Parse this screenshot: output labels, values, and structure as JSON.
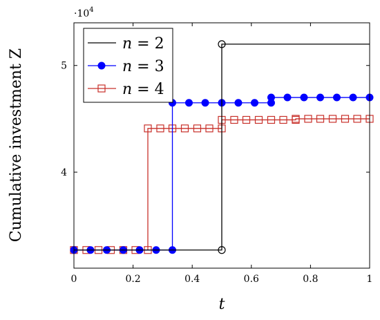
{
  "chart_data": {
    "type": "line",
    "title": "",
    "xlabel": "t",
    "ylabel": "Cumulative investment Z",
    "xlim": [
      0,
      1
    ],
    "ylim": [
      31000,
      54000
    ],
    "y_scale_label": "·10",
    "y_scale_exponent": "4",
    "x_ticks": [
      0,
      0.2,
      0.4,
      0.6,
      0.8,
      1
    ],
    "x_tick_labels": [
      "0",
      "0.2",
      "0.4",
      "0.6",
      "0.8",
      "1"
    ],
    "y_ticks": [
      40000,
      50000
    ],
    "y_tick_labels": [
      "4",
      "5"
    ],
    "legend_position": "top-left",
    "series": [
      {
        "name": "n = 2",
        "legend": {
          "base": "n",
          "eq": " = ",
          "num": "2"
        },
        "color": "#000000",
        "marker": "open-circle",
        "x": [
          0,
          0.5,
          0.5,
          1
        ],
        "y": [
          32700,
          32700,
          52000,
          52000
        ],
        "marker_x": [
          0.5,
          0.5
        ],
        "marker_y": [
          32700,
          52000
        ]
      },
      {
        "name": "n = 3",
        "legend": {
          "base": "n",
          "eq": " = ",
          "num": "3"
        },
        "color": "#0000ff",
        "marker": "filled-circle",
        "x": [
          0,
          0.333,
          0.333,
          0.667,
          0.667,
          1
        ],
        "y": [
          32700,
          32700,
          46500,
          46500,
          47000,
          47000
        ],
        "marker_x": [
          0,
          0.056,
          0.111,
          0.167,
          0.222,
          0.278,
          0.333,
          0.333,
          0.389,
          0.444,
          0.5,
          0.556,
          0.611,
          0.667,
          0.667,
          0.722,
          0.778,
          0.833,
          0.889,
          0.944,
          1
        ],
        "marker_y": [
          32700,
          32700,
          32700,
          32700,
          32700,
          32700,
          32700,
          46500,
          46500,
          46500,
          46500,
          46500,
          46500,
          46500,
          47000,
          47000,
          47000,
          47000,
          47000,
          47000,
          47000
        ]
      },
      {
        "name": "n = 4",
        "legend": {
          "base": "n",
          "eq": " = ",
          "num": "4"
        },
        "color": "#c8302a",
        "marker": "open-square",
        "x": [
          0,
          0.25,
          0.25,
          0.5,
          0.5,
          0.75,
          0.75,
          1
        ],
        "y": [
          32700,
          32700,
          44100,
          44100,
          44900,
          44900,
          45000,
          45000
        ],
        "marker_x": [
          0,
          0.042,
          0.083,
          0.125,
          0.167,
          0.208,
          0.25,
          0.25,
          0.292,
          0.333,
          0.375,
          0.417,
          0.458,
          0.5,
          0.5,
          0.542,
          0.583,
          0.625,
          0.667,
          0.708,
          0.75,
          0.75,
          0.792,
          0.833,
          0.875,
          0.917,
          0.958,
          1
        ],
        "marker_y": [
          32700,
          32700,
          32700,
          32700,
          32700,
          32700,
          32700,
          44100,
          44100,
          44100,
          44100,
          44100,
          44100,
          44100,
          44900,
          44900,
          44900,
          44900,
          44900,
          44900,
          44900,
          45000,
          45000,
          45000,
          45000,
          45000,
          45000,
          45000
        ]
      }
    ]
  }
}
